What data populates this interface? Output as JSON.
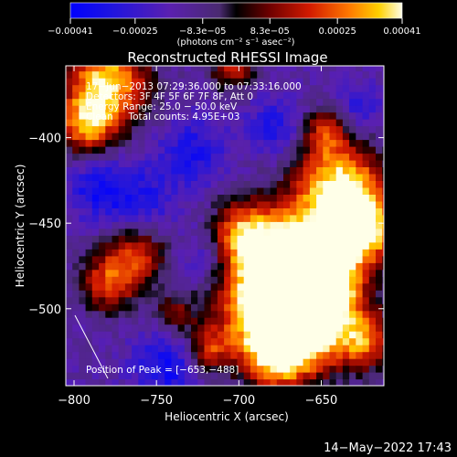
{
  "chart_data": {
    "type": "heatmap",
    "title": "Reconstructed RHESSI Image",
    "xlabel": "Heliocentric X (arcsec)",
    "ylabel": "Heliocentric Y (arcsec)",
    "xlim": [
      -805,
      -612
    ],
    "ylim": [
      -545,
      -358
    ],
    "x_ticks": [
      {
        "value": -800,
        "label": "−800"
      },
      {
        "value": -750,
        "label": "−750"
      },
      {
        "value": -700,
        "label": "−700"
      },
      {
        "value": -650,
        "label": "−650"
      }
    ],
    "y_ticks": [
      {
        "value": -400,
        "label": "−400"
      },
      {
        "value": -450,
        "label": "−450"
      },
      {
        "value": -500,
        "label": "−500"
      }
    ],
    "colorbar": {
      "range": [
        -0.00041,
        0.00041
      ],
      "ticks": [
        {
          "value": -0.00041,
          "label": "−0.00041"
        },
        {
          "value": -0.00025,
          "label": "−0.00025"
        },
        {
          "value": -8.3e-05,
          "label": "−8.3e−05"
        },
        {
          "value": 8.3e-05,
          "label": "8.3e−05"
        },
        {
          "value": 0.00025,
          "label": "0.00025"
        },
        {
          "value": 0.00041,
          "label": "0.00041"
        }
      ],
      "unit_text": "(photons cm⁻² s⁻¹ asec⁻²)"
    },
    "annotations": [
      "17−Jun−2013 07:29:36.000 to 07:33:16.000",
      "Detectors: 3F 4F 5F 6F 7F 8F, Att 0",
      "Energy Range: 25.0 − 50.0 keV",
      "Clean     Total counts: 4.95E+03"
    ],
    "peak_label": "Position of Peak = [−653,−488]",
    "peak": [
      -653,
      -488
    ],
    "bright_regions": [
      {
        "x": -782,
        "y": -370,
        "level": 0.85,
        "size": 18
      },
      {
        "x": -795,
        "y": -395,
        "level": 0.6,
        "size": 12
      },
      {
        "x": -765,
        "y": -470,
        "level": 0.55,
        "size": 14
      },
      {
        "x": -782,
        "y": -487,
        "level": 0.5,
        "size": 12
      },
      {
        "x": -705,
        "y": -360,
        "level": 0.5,
        "size": 10
      },
      {
        "x": -740,
        "y": -505,
        "level": 0.35,
        "size": 9
      },
      {
        "x": -640,
        "y": -430,
        "level": 0.85,
        "size": 18
      },
      {
        "x": -625,
        "y": -455,
        "level": 0.8,
        "size": 14
      },
      {
        "x": -665,
        "y": -470,
        "level": 0.9,
        "size": 22
      },
      {
        "x": -653,
        "y": -488,
        "level": 1.0,
        "size": 16
      },
      {
        "x": -690,
        "y": -500,
        "level": 0.85,
        "size": 18
      },
      {
        "x": -700,
        "y": -460,
        "level": 0.7,
        "size": 14
      },
      {
        "x": -660,
        "y": -515,
        "level": 0.8,
        "size": 18
      },
      {
        "x": -625,
        "y": -520,
        "level": 0.6,
        "size": 12
      },
      {
        "x": -680,
        "y": -530,
        "level": 0.7,
        "size": 14
      },
      {
        "x": -720,
        "y": -525,
        "level": 0.5,
        "size": 10
      },
      {
        "x": -650,
        "y": -398,
        "level": 0.45,
        "size": 10
      }
    ],
    "dark_regions": [
      {
        "x": -765,
        "y": -440,
        "level": 0.55,
        "size": 16
      },
      {
        "x": -730,
        "y": -410,
        "level": 0.5,
        "size": 14
      },
      {
        "x": -680,
        "y": -395,
        "level": 0.5,
        "size": 12
      },
      {
        "x": -745,
        "y": -535,
        "level": 0.6,
        "size": 14
      },
      {
        "x": -720,
        "y": -470,
        "level": 0.4,
        "size": 12
      },
      {
        "x": -790,
        "y": -430,
        "level": 0.45,
        "size": 12
      },
      {
        "x": -630,
        "y": -385,
        "level": 0.4,
        "size": 10
      }
    ],
    "grid": false
  },
  "footer": {
    "timestamp": "14−May−2022 17:43"
  }
}
